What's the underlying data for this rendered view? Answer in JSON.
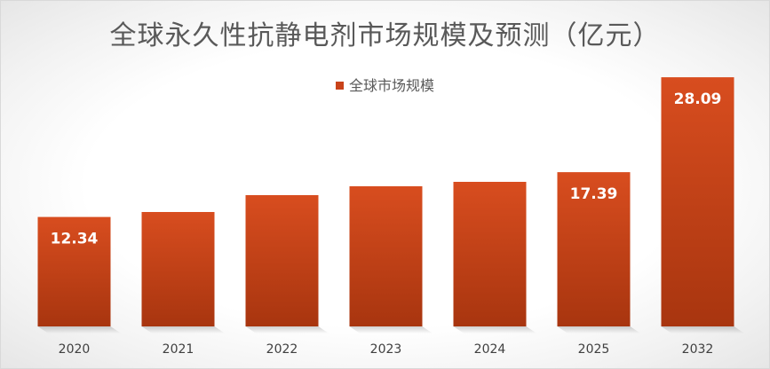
{
  "chart_data": {
    "type": "bar",
    "title": "全球永久性抗静电剂市场规模及预测（亿元）",
    "categories": [
      "2020",
      "2021",
      "2022",
      "2023",
      "2024",
      "2025",
      "2032"
    ],
    "series": [
      {
        "name": "全球市场规模",
        "values": [
          12.34,
          12.9,
          14.8,
          15.8,
          16.3,
          17.39,
          28.09
        ],
        "labels": [
          "12.34",
          "",
          "",
          "",
          "",
          "17.39",
          "28.09"
        ]
      }
    ],
    "ylim": [
      0,
      30
    ],
    "grid": false,
    "legend_position": "top",
    "colors": {
      "bar_top": "#d84d1f",
      "bar_bottom": "#a8350f",
      "legend": "#c9431a"
    }
  }
}
